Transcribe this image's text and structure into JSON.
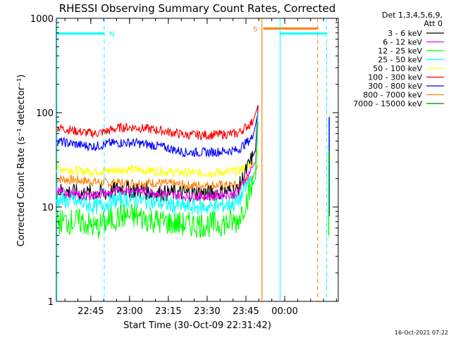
{
  "chart_data": {
    "type": "line",
    "title": "RHESSI Observing Summary Count Rates, Corrected",
    "xlabel": "Start Time (30-Oct-09 22:31:42)",
    "ylabel": "Corrected Count Rate (s⁻¹ detector⁻¹)",
    "yscale": "log",
    "ylim": [
      1,
      1000
    ],
    "xlim_minutes": [
      0,
      109
    ],
    "x_tick_labels": [
      "22:45",
      "23:00",
      "23:15",
      "23:30",
      "23:45",
      "00:00"
    ],
    "x_tick_minutes": [
      13.3,
      28.3,
      43.3,
      58.3,
      73.3,
      88.3
    ],
    "y_tick_labels": [
      "1",
      "10",
      "100",
      "1000"
    ],
    "y_tick_values": [
      1,
      10,
      100,
      1000
    ],
    "legend_header": "Det 1,3,4,5,6,9,",
    "legend_header2": "Att 0",
    "series": [
      {
        "name": "3 - 6 keV",
        "color": "#000000",
        "points": [
          [
            0,
            15
          ],
          [
            10,
            14
          ],
          [
            20,
            14
          ],
          [
            25,
            16
          ],
          [
            30,
            15
          ],
          [
            40,
            14
          ],
          [
            50,
            14
          ],
          [
            60,
            14
          ],
          [
            70,
            15
          ],
          [
            77,
            40
          ],
          [
            78,
            120
          ]
        ]
      },
      {
        "name": "6 - 12 keV",
        "color": "#ff00ff",
        "points": [
          [
            0,
            15
          ],
          [
            10,
            13
          ],
          [
            20,
            14
          ],
          [
            25,
            15
          ],
          [
            30,
            15
          ],
          [
            40,
            14
          ],
          [
            50,
            13
          ],
          [
            60,
            13
          ],
          [
            70,
            14
          ],
          [
            77,
            30
          ],
          [
            78,
            110
          ]
        ]
      },
      {
        "name": "12 - 25 keV",
        "color": "#00ff00",
        "points": [
          [
            0,
            7
          ],
          [
            10,
            7
          ],
          [
            15,
            6
          ],
          [
            20,
            7
          ],
          [
            25,
            8
          ],
          [
            30,
            8
          ],
          [
            40,
            7
          ],
          [
            50,
            6.5
          ],
          [
            60,
            6.5
          ],
          [
            70,
            7
          ],
          [
            77,
            20
          ],
          [
            78,
            80
          ]
        ]
      },
      {
        "name": "25 - 50 keV",
        "color": "#00ffff",
        "points": [
          [
            0,
            12
          ],
          [
            10,
            11
          ],
          [
            15,
            10
          ],
          [
            20,
            11
          ],
          [
            25,
            12
          ],
          [
            30,
            12
          ],
          [
            40,
            11
          ],
          [
            50,
            10
          ],
          [
            60,
            10
          ],
          [
            70,
            11
          ],
          [
            77,
            25
          ],
          [
            78,
            100
          ]
        ]
      },
      {
        "name": "50 - 100 keV",
        "color": "#ffff00",
        "points": [
          [
            0,
            26
          ],
          [
            10,
            24
          ],
          [
            20,
            24
          ],
          [
            25,
            25
          ],
          [
            30,
            25
          ],
          [
            40,
            24
          ],
          [
            50,
            23
          ],
          [
            60,
            23
          ],
          [
            70,
            24
          ],
          [
            77,
            30
          ],
          [
            78,
            40
          ]
        ]
      },
      {
        "name": "100 - 300 keV",
        "color": "#ff0000",
        "points": [
          [
            0,
            70
          ],
          [
            10,
            62
          ],
          [
            15,
            60
          ],
          [
            20,
            64
          ],
          [
            25,
            70
          ],
          [
            30,
            70
          ],
          [
            40,
            65
          ],
          [
            50,
            58
          ],
          [
            60,
            58
          ],
          [
            70,
            60
          ],
          [
            76,
            80
          ],
          [
            78,
            120
          ]
        ]
      },
      {
        "name": "300 - 800 keV",
        "color": "#0000ff",
        "points": [
          [
            0,
            50
          ],
          [
            10,
            45
          ],
          [
            15,
            44
          ],
          [
            20,
            47
          ],
          [
            25,
            48
          ],
          [
            30,
            48
          ],
          [
            40,
            44
          ],
          [
            50,
            38
          ],
          [
            60,
            38
          ],
          [
            70,
            40
          ],
          [
            76,
            55
          ],
          [
            78,
            100
          ]
        ]
      },
      {
        "name": "800 - 7000 keV",
        "color": "#ff8000",
        "points": [
          [
            0,
            20
          ],
          [
            10,
            19
          ],
          [
            20,
            18
          ],
          [
            25,
            18
          ],
          [
            30,
            18
          ],
          [
            40,
            18
          ],
          [
            50,
            17
          ],
          [
            60,
            17
          ],
          [
            70,
            17
          ],
          [
            76,
            20
          ],
          [
            78,
            28
          ]
        ]
      },
      {
        "name": "7000 - 15000 keV",
        "color": "#008000",
        "points": []
      }
    ],
    "annotations": [
      {
        "text": "N",
        "color": "#00ffff"
      },
      {
        "text": "S",
        "color": "#ff8000"
      }
    ],
    "timestamp": "16-Oct-2021 07:22"
  }
}
